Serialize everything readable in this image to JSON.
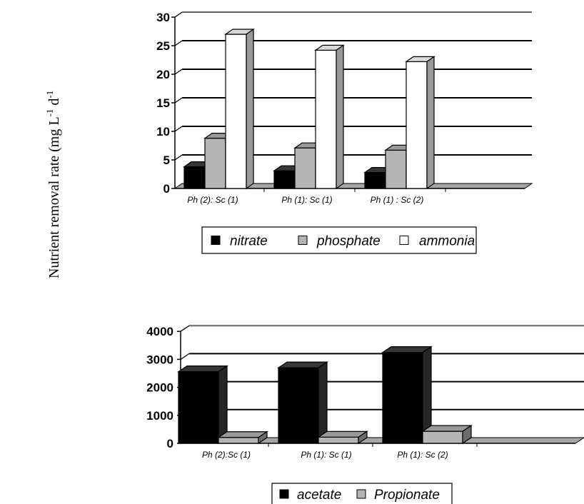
{
  "y_axis_label": "Nutrient  removal rate  (mg L",
  "y_axis_label_sup1": "-1",
  "y_axis_label_mid": " d",
  "y_axis_label_sup2": "-1",
  "chart_data": [
    {
      "type": "bar",
      "categories": [
        "Ph (2): Sc (1)",
        "Ph (1): Sc (1)",
        "Ph (1) : Sc (2)"
      ],
      "series": [
        {
          "name": "nitrate",
          "values": [
            3.8,
            3.1,
            2.8
          ],
          "color": "#000000"
        },
        {
          "name": "phosphate",
          "values": [
            8.8,
            7.1,
            6.7
          ],
          "color": "#b4b4b4"
        },
        {
          "name": "ammonia",
          "values": [
            27.0,
            24.2,
            22.2
          ],
          "color": "#ffffff"
        }
      ],
      "y_ticks": [
        0,
        5,
        10,
        15,
        20,
        25,
        30
      ],
      "ylim": [
        0,
        30
      ],
      "grid": true,
      "legend_position": "bottom"
    },
    {
      "type": "bar",
      "categories": [
        "Ph (2):Sc (1)",
        "Ph (1): Sc (1)",
        "Ph (1): Sc (2)"
      ],
      "series": [
        {
          "name": "acetate",
          "values": [
            2560,
            2700,
            3250
          ],
          "color": "#000000"
        },
        {
          "name": "Propionate",
          "values": [
            210,
            220,
            430
          ],
          "color": "#b4b4b4"
        }
      ],
      "y_ticks": [
        0,
        1000,
        2000,
        3000,
        4000
      ],
      "ylim": [
        0,
        4000
      ],
      "grid": true,
      "legend_position": "bottom"
    }
  ]
}
